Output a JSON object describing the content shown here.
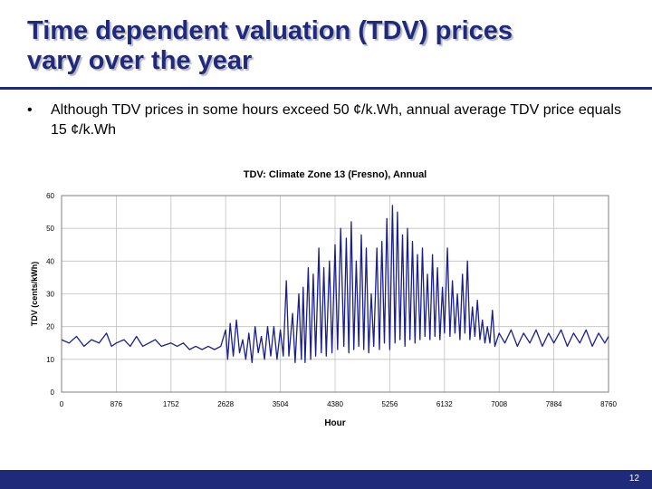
{
  "slide": {
    "title_line1": "Time dependent valuation (TDV) prices",
    "title_line2": "vary over the year",
    "bullet_symbol": "•",
    "bullet": "Although TDV prices in some hours exceed 50 ¢/k.Wh, annual average TDV price equals 15 ¢/k.Wh",
    "page_number": "12"
  },
  "colors": {
    "accent": "#1f2a7a",
    "series": "#1a1f8c",
    "grid": "#c0c0c0"
  },
  "chart_data": {
    "type": "line",
    "title": "TDV: Climate Zone 13 (Fresno), Annual",
    "xlabel": "Hour",
    "ylabel": "TDV (cents/kWh)",
    "xlim": [
      0,
      8760
    ],
    "ylim": [
      0,
      60
    ],
    "xticks": [
      0,
      876,
      1752,
      2628,
      3504,
      4380,
      5256,
      6132,
      7008,
      7884,
      8760
    ],
    "yticks": [
      0,
      10,
      20,
      30,
      40,
      50,
      60
    ],
    "grid": true,
    "series": [
      {
        "values": [
          [
            0,
            16
          ],
          [
            120,
            15
          ],
          [
            240,
            17
          ],
          [
            360,
            14
          ],
          [
            480,
            16
          ],
          [
            600,
            15
          ],
          [
            720,
            18
          ],
          [
            800,
            14
          ],
          [
            876,
            15
          ],
          [
            1000,
            16
          ],
          [
            1100,
            14
          ],
          [
            1200,
            17
          ],
          [
            1300,
            14
          ],
          [
            1400,
            15
          ],
          [
            1500,
            16
          ],
          [
            1600,
            14
          ],
          [
            1752,
            15
          ],
          [
            1850,
            14
          ],
          [
            1950,
            15
          ],
          [
            2050,
            13
          ],
          [
            2150,
            14
          ],
          [
            2250,
            13
          ],
          [
            2350,
            14
          ],
          [
            2450,
            13
          ],
          [
            2550,
            14
          ],
          [
            2628,
            19
          ],
          [
            2660,
            10
          ],
          [
            2700,
            21
          ],
          [
            2750,
            11
          ],
          [
            2800,
            22
          ],
          [
            2850,
            12
          ],
          [
            2900,
            16
          ],
          [
            2950,
            10
          ],
          [
            3000,
            18
          ],
          [
            3050,
            9
          ],
          [
            3100,
            20
          ],
          [
            3150,
            12
          ],
          [
            3200,
            17
          ],
          [
            3250,
            10
          ],
          [
            3300,
            20
          ],
          [
            3350,
            11
          ],
          [
            3400,
            20
          ],
          [
            3450,
            10
          ],
          [
            3504,
            19
          ],
          [
            3550,
            11
          ],
          [
            3600,
            34
          ],
          [
            3640,
            11
          ],
          [
            3700,
            24
          ],
          [
            3740,
            9
          ],
          [
            3800,
            30
          ],
          [
            3840,
            10
          ],
          [
            3870,
            32
          ],
          [
            3900,
            9
          ],
          [
            3950,
            38
          ],
          [
            3990,
            10
          ],
          [
            4030,
            36
          ],
          [
            4070,
            11
          ],
          [
            4120,
            44
          ],
          [
            4160,
            12
          ],
          [
            4200,
            38
          ],
          [
            4240,
            11
          ],
          [
            4290,
            40
          ],
          [
            4330,
            12
          ],
          [
            4380,
            45
          ],
          [
            4420,
            13
          ],
          [
            4470,
            50
          ],
          [
            4520,
            14
          ],
          [
            4560,
            47
          ],
          [
            4600,
            12
          ],
          [
            4640,
            52
          ],
          [
            4680,
            13
          ],
          [
            4720,
            40
          ],
          [
            4760,
            14
          ],
          [
            4800,
            48
          ],
          [
            4840,
            13
          ],
          [
            4880,
            44
          ],
          [
            4920,
            12
          ],
          [
            4960,
            30
          ],
          [
            5000,
            14
          ],
          [
            5050,
            44
          ],
          [
            5090,
            13
          ],
          [
            5130,
            46
          ],
          [
            5170,
            15
          ],
          [
            5210,
            53
          ],
          [
            5256,
            13
          ],
          [
            5300,
            57
          ],
          [
            5340,
            15
          ],
          [
            5380,
            55
          ],
          [
            5420,
            16
          ],
          [
            5460,
            48
          ],
          [
            5500,
            14
          ],
          [
            5540,
            50
          ],
          [
            5580,
            16
          ],
          [
            5620,
            46
          ],
          [
            5660,
            15
          ],
          [
            5700,
            42
          ],
          [
            5740,
            16
          ],
          [
            5780,
            44
          ],
          [
            5820,
            17
          ],
          [
            5860,
            36
          ],
          [
            5900,
            16
          ],
          [
            5940,
            42
          ],
          [
            5980,
            17
          ],
          [
            6020,
            38
          ],
          [
            6060,
            16
          ],
          [
            6100,
            32
          ],
          [
            6132,
            18
          ],
          [
            6180,
            44
          ],
          [
            6220,
            17
          ],
          [
            6260,
            34
          ],
          [
            6300,
            18
          ],
          [
            6340,
            30
          ],
          [
            6380,
            16
          ],
          [
            6420,
            36
          ],
          [
            6460,
            18
          ],
          [
            6500,
            40
          ],
          [
            6540,
            16
          ],
          [
            6580,
            26
          ],
          [
            6620,
            17
          ],
          [
            6660,
            28
          ],
          [
            6700,
            16
          ],
          [
            6740,
            22
          ],
          [
            6780,
            15
          ],
          [
            6820,
            20
          ],
          [
            6860,
            15
          ],
          [
            6900,
            25
          ],
          [
            6940,
            14
          ],
          [
            7008,
            18
          ],
          [
            7100,
            15
          ],
          [
            7200,
            19
          ],
          [
            7300,
            14
          ],
          [
            7400,
            18
          ],
          [
            7500,
            15
          ],
          [
            7600,
            19
          ],
          [
            7700,
            14
          ],
          [
            7800,
            18
          ],
          [
            7884,
            15
          ],
          [
            8000,
            19
          ],
          [
            8100,
            14
          ],
          [
            8200,
            18
          ],
          [
            8300,
            15
          ],
          [
            8400,
            19
          ],
          [
            8500,
            14
          ],
          [
            8600,
            18
          ],
          [
            8700,
            15
          ],
          [
            8760,
            17
          ]
        ]
      }
    ]
  }
}
